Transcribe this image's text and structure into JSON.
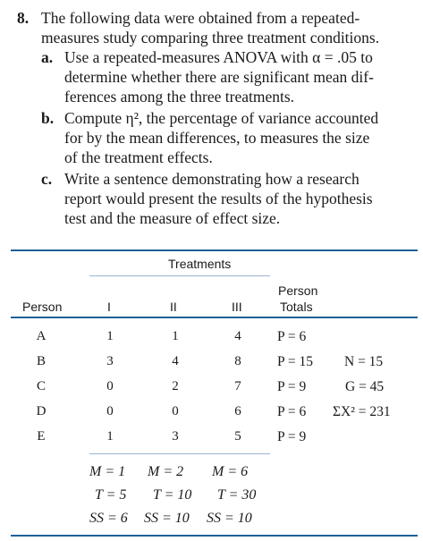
{
  "problem": {
    "number": "8.",
    "intro_line1": "The following data were obtained from a repeated-",
    "intro_line2": "measures study comparing three treatment conditions.",
    "parts": [
      {
        "label": "a.",
        "lines": [
          "Use a repeated-measures ANOVA with α = .05 to",
          "determine whether there are significant mean dif-",
          "ferences among the three treatments."
        ]
      },
      {
        "label": "b.",
        "lines": [
          "Compute η², the percentage of variance accounted",
          "for by the mean differences, to measures the size",
          "of the treatment effects."
        ]
      },
      {
        "label": "c.",
        "lines": [
          "Write a sentence demonstrating how a research",
          "report would present the results of the hypothesis",
          "test and the measure of effect size."
        ]
      }
    ]
  },
  "table": {
    "group_header": "Treatments",
    "col_person": "Person",
    "col_t1": "I",
    "col_t2": "II",
    "col_t3": "III",
    "col_totals_line1": "Person",
    "col_totals_line2": "Totals",
    "rows": [
      {
        "person": "A",
        "t1": "1",
        "t2": "1",
        "t3": "4",
        "total": "P = 6",
        "extra": ""
      },
      {
        "person": "B",
        "t1": "3",
        "t2": "4",
        "t3": "8",
        "total": "P = 15",
        "extra": "N = 15"
      },
      {
        "person": "C",
        "t1": "0",
        "t2": "2",
        "t3": "7",
        "total": "P = 9",
        "extra": "G = 45"
      },
      {
        "person": "D",
        "t1": "0",
        "t2": "0",
        "t3": "6",
        "total": "P = 6",
        "extra": "ΣX² = 231"
      },
      {
        "person": "E",
        "t1": "1",
        "t2": "3",
        "t3": "5",
        "total": "P = 9",
        "extra": ""
      }
    ],
    "summary": {
      "means": [
        "M = 1",
        "M = 2",
        "M = 6"
      ],
      "totals": [
        "T = 5",
        "T = 10",
        "T = 30"
      ],
      "ss": [
        "SS = 6",
        "SS = 10",
        "SS = 10"
      ]
    }
  }
}
